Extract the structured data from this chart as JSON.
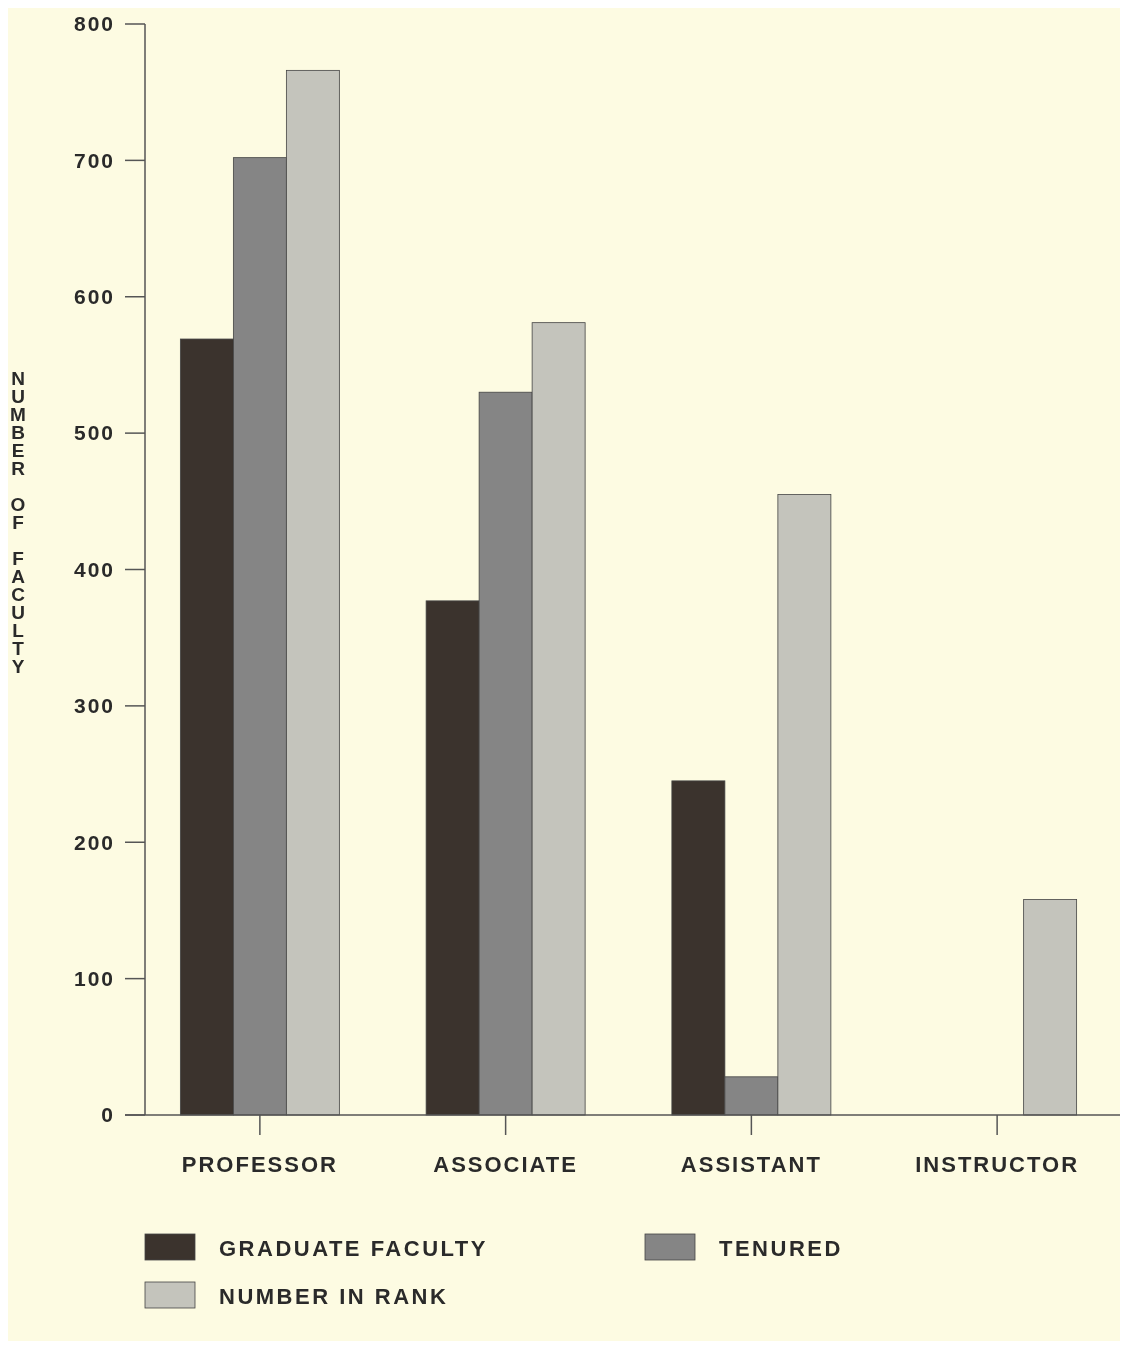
{
  "chart_data": {
    "type": "bar",
    "ylabel": "NUMBER OF FACULTY",
    "categories": [
      "PROFESSOR",
      "ASSOCIATE",
      "ASSISTANT",
      "INSTRUCTOR"
    ],
    "series": [
      {
        "name": "GRADUATE FACULTY",
        "color": "#3b332d",
        "values": [
          569,
          377,
          245,
          0
        ]
      },
      {
        "name": "TENURED",
        "color": "#858585",
        "values": [
          702,
          530,
          28,
          0
        ]
      },
      {
        "name": "NUMBER IN RANK",
        "color": "#c4c4bc",
        "values": [
          766,
          581,
          455,
          158
        ]
      }
    ],
    "ylim": [
      0,
      800
    ],
    "yticks": [
      0,
      100,
      200,
      300,
      400,
      500,
      600,
      700,
      800
    ],
    "grid": false,
    "legend": "bottom"
  }
}
